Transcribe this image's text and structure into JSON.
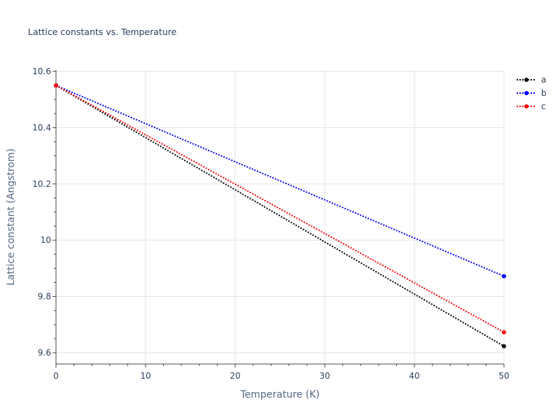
{
  "chart_data": {
    "type": "line",
    "title": "Lattice constants vs. Temperature",
    "xlabel": "Temperature (K)",
    "ylabel": "Lattice constant (Angstrom)",
    "xlim": [
      0,
      50
    ],
    "ylim": [
      9.56,
      10.605
    ],
    "x_ticks": [
      0,
      10,
      20,
      30,
      40,
      50
    ],
    "x_tick_labels": [
      "0",
      "10",
      "20",
      "30",
      "40",
      "50"
    ],
    "y_ticks": [
      9.6,
      9.8,
      10.0,
      10.2,
      10.4,
      10.6
    ],
    "y_tick_labels": [
      "9.6",
      "9.8",
      "10",
      "10.2",
      "10.4",
      "10.6"
    ],
    "grid": true,
    "legend_position": "top-right",
    "line_style": "dotted",
    "x": [
      0,
      50
    ],
    "series": [
      {
        "name": "a",
        "color": "#000000",
        "values": [
          10.55,
          9.623
        ]
      },
      {
        "name": "b",
        "color": "#0000ff",
        "values": [
          10.55,
          9.872
        ]
      },
      {
        "name": "c",
        "color": "#ff0000",
        "values": [
          10.55,
          9.673
        ]
      }
    ]
  }
}
